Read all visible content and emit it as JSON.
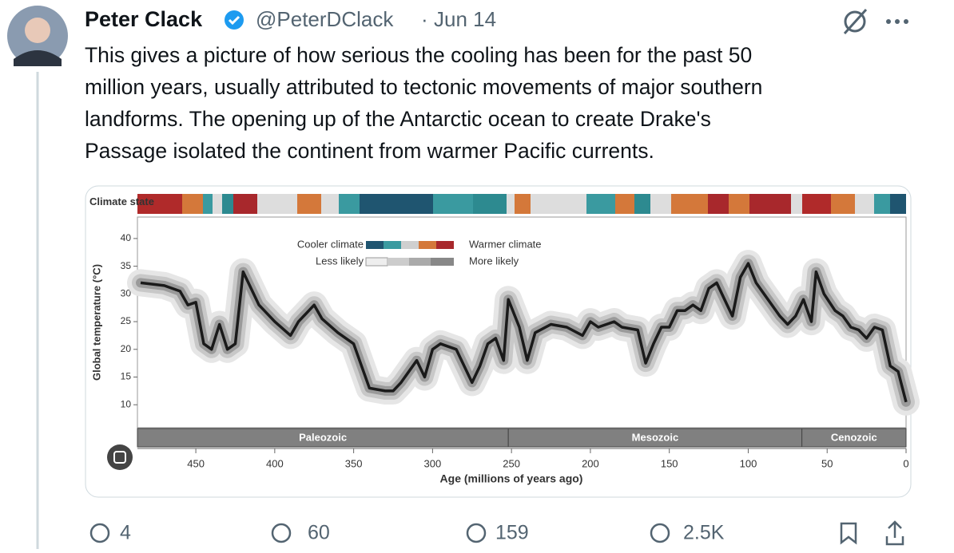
{
  "tweet": {
    "name": "Peter Clack",
    "handle": "@PeterDClack",
    "separator": "·",
    "date": "Jun 14",
    "text_lines": [
      "This gives a picture of how serious the cooling has been for the past 50",
      "million years, usually attributed to tectonic movements of major southern",
      "landforms. The opening up of the Antarctic ocean to create Drake's",
      "Passage isolated the continent from warmer Pacific currents."
    ],
    "stats": {
      "replies": "4",
      "reposts": "60",
      "likes": "159",
      "views": "2.5K"
    }
  },
  "chart_data": {
    "type": "line",
    "climate_state_label": "Climate state",
    "y_label": "Global temperature (°C)",
    "x_label": "Age (millions of years ago)",
    "legend": {
      "cooler": "Cooler climate",
      "warmer": "Warmer climate",
      "less": "Less likely",
      "more": "More likely"
    },
    "eras": [
      {
        "name": "Paleozoic",
        "start": 487,
        "end": 252
      },
      {
        "name": "Mesozoic",
        "start": 252,
        "end": 66
      },
      {
        "name": "Cenozoic",
        "start": 66,
        "end": 0
      }
    ],
    "x": [
      485,
      470,
      460,
      455,
      450,
      445,
      440,
      435,
      430,
      425,
      420,
      415,
      410,
      400,
      390,
      385,
      375,
      370,
      360,
      350,
      340,
      330,
      325,
      320,
      310,
      305,
      300,
      295,
      285,
      275,
      270,
      265,
      260,
      255,
      252,
      245,
      240,
      235,
      225,
      215,
      205,
      200,
      195,
      185,
      180,
      170,
      165,
      160,
      155,
      150,
      145,
      140,
      135,
      130,
      125,
      120,
      115,
      110,
      105,
      100,
      95,
      90,
      80,
      75,
      70,
      65,
      60,
      57,
      52,
      45,
      40,
      35,
      30,
      25,
      20,
      15,
      10,
      5,
      0
    ],
    "values": [
      32,
      31.5,
      30.5,
      28,
      28.5,
      21,
      20,
      24.5,
      20,
      21,
      34,
      31,
      28,
      25,
      22.5,
      25,
      28,
      25.5,
      23,
      21,
      13,
      12.5,
      12.5,
      14,
      18,
      15,
      20,
      21,
      20,
      14,
      17,
      21,
      22,
      18,
      29,
      24,
      18,
      23,
      24.5,
      24,
      22.5,
      25,
      24,
      25,
      24,
      23.5,
      17.5,
      21,
      24,
      24,
      27,
      27,
      28,
      27,
      31,
      32,
      29,
      26,
      33,
      35.5,
      32,
      30,
      26,
      24.5,
      26,
      29,
      25,
      34,
      30,
      27,
      26,
      24,
      23.5,
      22,
      24,
      23.5,
      17,
      16,
      10.5
    ],
    "color": "#1a1a1a",
    "xlim": [
      487,
      0
    ],
    "xticks": [
      450,
      400,
      350,
      300,
      250,
      200,
      150,
      100,
      50,
      0
    ],
    "ylim": [
      6,
      42
    ],
    "yticks": [
      10,
      15,
      20,
      25,
      30,
      35,
      40
    ]
  }
}
